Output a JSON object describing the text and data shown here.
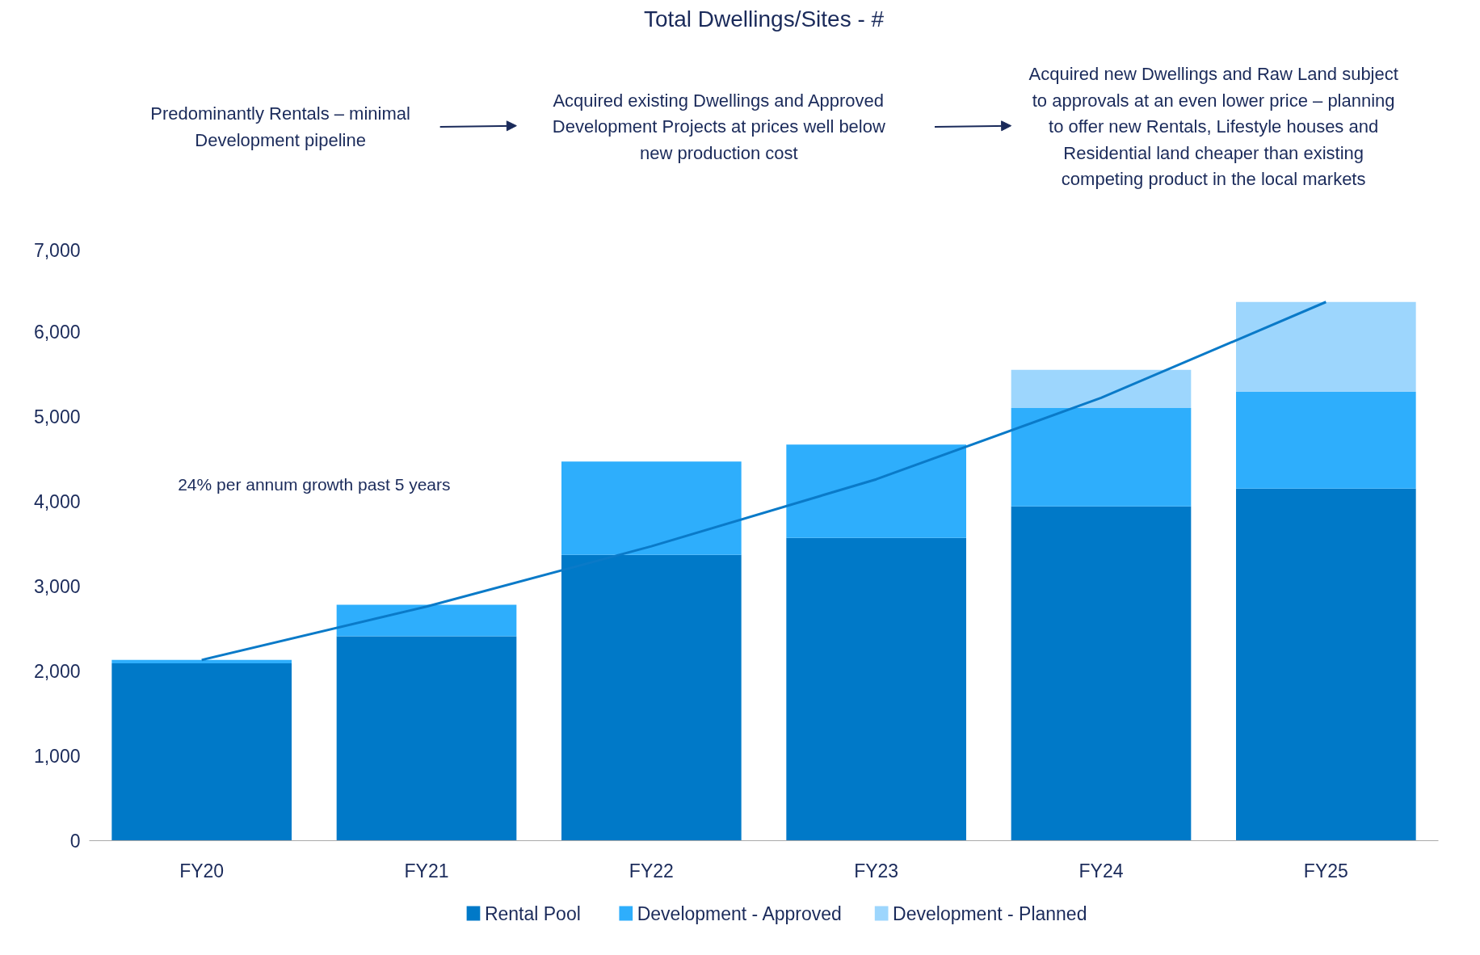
{
  "chart_data": {
    "type": "bar",
    "title": "Total Dwellings/Sites - #",
    "categories": [
      "FY20",
      "FY21",
      "FY22",
      "FY23",
      "FY24",
      "FY25"
    ],
    "stacked": true,
    "series": [
      {
        "name": "Rental Pool",
        "color": "#0079c8",
        "values": [
          2090,
          2410,
          3370,
          3570,
          3940,
          4150
        ]
      },
      {
        "name": "Development - Approved",
        "color": "#2eaefc",
        "values": [
          40,
          370,
          1100,
          1100,
          1160,
          1140
        ]
      },
      {
        "name": "Development - Planned",
        "color": "#9dd6fd",
        "values": [
          0,
          0,
          0,
          0,
          450,
          1060
        ]
      },
      {
        "type": "line",
        "color": "#0a7ac8",
        "values": [
          2130,
          2760,
          3470,
          4260,
          5220,
          6350
        ]
      }
    ],
    "ylim": [
      0,
      7000
    ],
    "yticks": [
      0,
      {
        "value": 1000,
        "label": "1,000"
      },
      {
        "value": 2000,
        "label": "2,000"
      },
      {
        "value": 3000,
        "label": "3,000"
      },
      {
        "value": 4000,
        "label": "4,000"
      },
      {
        "value": 5000,
        "label": "5,000"
      },
      {
        "value": 6000,
        "label": "6,000"
      },
      {
        "value": 7000,
        "label": "7,000"
      }
    ],
    "grid": false,
    "legend": "bottom",
    "annotations": [
      "Predominantly Rentals – minimal\nDevelopment pipeline",
      "Acquired existing Dwellings and Approved\nDevelopment Projects at prices well below\nnew production cost",
      "Acquired new Dwellings and Raw Land subject\nto approvals at an even lower price – planning\nto offer new Rentals, Lifestyle houses and\nResidential land cheaper than existing\ncompeting product in the local markets",
      "24% per annum growth past 5 years"
    ]
  }
}
